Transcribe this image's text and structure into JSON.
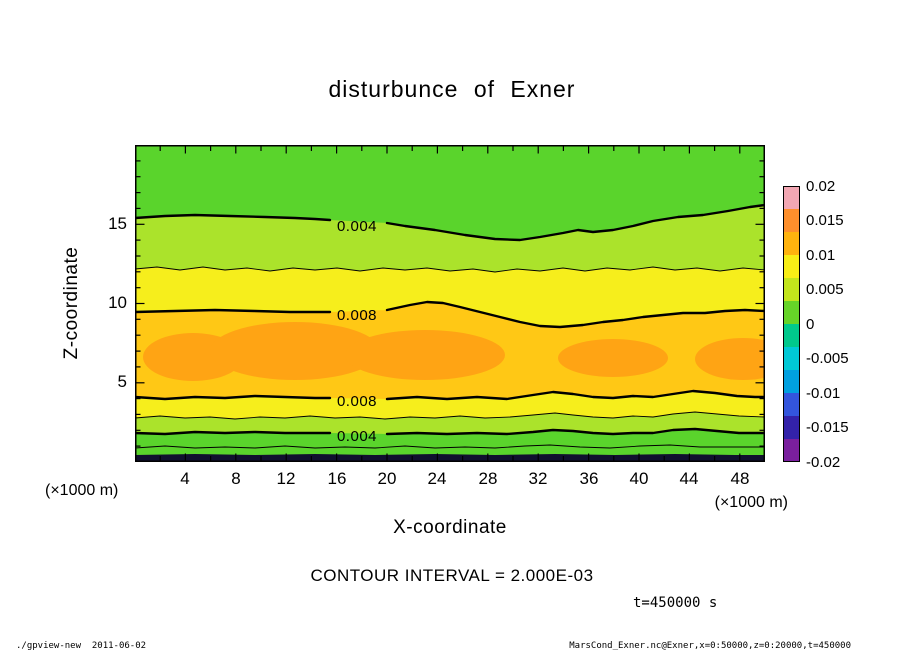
{
  "title": "disturbunce of Exner",
  "axes": {
    "x": {
      "label": "X-coordinate",
      "unit": "(×1000 m)",
      "ticks": [
        "4",
        "8",
        "12",
        "16",
        "20",
        "24",
        "28",
        "32",
        "36",
        "40",
        "44",
        "48"
      ]
    },
    "y": {
      "label": "Z-coordinate",
      "unit": "(×1000 m)",
      "ticks": [
        "15",
        "10",
        "5"
      ]
    }
  },
  "colorbar": {
    "labels": [
      "0.02",
      "0.015",
      "0.01",
      "0.005",
      "0",
      "-0.005",
      "-0.01",
      "-0.015",
      "-0.02"
    ],
    "colors": [
      "#f2a7b3",
      "#fe8f2c",
      "#ffb30e",
      "#f8ee16",
      "#c3e51c",
      "#66d428",
      "#00c98c",
      "#00c9d6",
      "#00a0e0",
      "#3355dd",
      "#3322aa",
      "#7a1f9e"
    ]
  },
  "notes": {
    "contour_interval": "CONTOUR INTERVAL = 2.000E-03",
    "time": "t=450000 s"
  },
  "footer": {
    "left": "./gpview-new  2011-06-02",
    "right": "MarsCond_Exner.nc@Exner,x=0:50000,z=0:20000,t=450000"
  },
  "chart_data": {
    "type": "heatmap",
    "subtype": "filled-contour",
    "title": "disturbunce of Exner",
    "xlabel": "X-coordinate (×1000 m)",
    "ylabel": "Z-coordinate (×1000 m)",
    "xlim": [
      0,
      50
    ],
    "zlim": [
      0,
      20
    ],
    "contour_interval": 0.002,
    "colorbar_ticks": [
      0.02,
      0.015,
      0.01,
      0.005,
      0,
      -0.005,
      -0.01,
      -0.015,
      -0.02
    ],
    "contour_labels": [
      {
        "text": "0.004",
        "x": 17,
        "z": 14.9
      },
      {
        "text": "0.008",
        "x": 17,
        "z": 9.3
      },
      {
        "text": "0.008",
        "x": 17,
        "z": 4.0
      },
      {
        "text": "0.004",
        "x": 17,
        "z": 1.8
      }
    ],
    "contour_z_levels": {
      "c0.004_upper": 15.2,
      "c0.006_upper": 12.2,
      "c0.008_upper": 9.5,
      "c0.008_lower": 4.1,
      "c0.006_lower": 2.7,
      "c0.004_lower": 1.8,
      "c0.002_lower": 0.9
    },
    "vertical_profile": {
      "z": [
        20,
        15,
        12,
        10,
        7,
        5,
        4,
        3,
        2,
        1,
        0
      ],
      "value": [
        0.003,
        0.004,
        0.006,
        0.008,
        0.01,
        0.009,
        0.008,
        0.006,
        0.004,
        0.002,
        -0.02
      ]
    },
    "orange_maxima_x_ranges": [
      [
        1,
        29
      ],
      [
        34,
        42
      ],
      [
        45,
        50
      ]
    ],
    "fills": {
      "green": "#5ad42c",
      "lightgreen": "#abe32b",
      "yellow": "#f6ee1c",
      "amber": "#ffc815",
      "orange": "#ffa414",
      "dark": "#10102e"
    }
  }
}
